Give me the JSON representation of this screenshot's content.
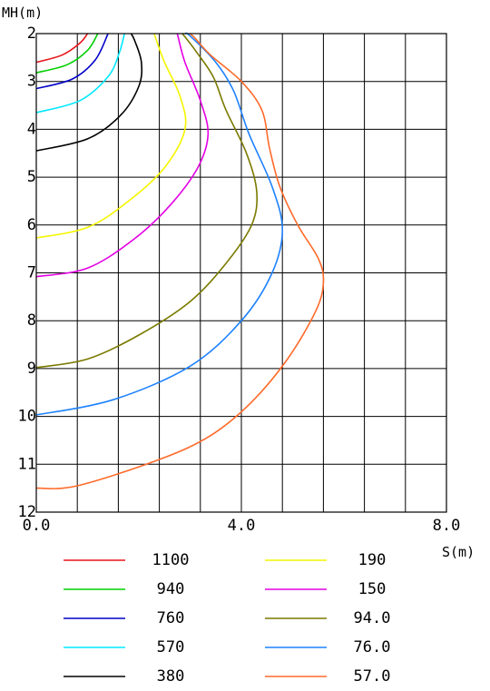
{
  "chart_data": {
    "type": "line",
    "xlabel": "S(m)",
    "ylabel": "MH(m)",
    "xlim": [
      0,
      8
    ],
    "ylim": [
      2,
      12
    ],
    "y_inverted": true,
    "x_tick_labels": [
      "0.0",
      "4.0",
      "8.0"
    ],
    "x_ticks": [
      0,
      4,
      8
    ],
    "y_ticks": [
      2,
      3,
      4,
      5,
      6,
      7,
      8,
      9,
      10,
      11,
      12
    ],
    "y_tick_labels": [
      "2",
      "3",
      "4",
      "5",
      "6",
      "7",
      "8",
      "9",
      "10",
      "11",
      "12"
    ],
    "grid": true,
    "grid_x_step": 0.8,
    "grid_y_step": 1,
    "legend_placement": "bottom",
    "series": [
      {
        "name": "1100",
        "color": "#e8151b",
        "points": [
          [
            0,
            2.6
          ],
          [
            0.5,
            2.45
          ],
          [
            0.85,
            2.2
          ],
          [
            1.0,
            2.0
          ]
        ]
      },
      {
        "name": "940",
        "color": "#00d000",
        "points": [
          [
            0,
            2.82
          ],
          [
            0.6,
            2.65
          ],
          [
            1.0,
            2.35
          ],
          [
            1.2,
            2.0
          ]
        ]
      },
      {
        "name": "760",
        "color": "#0000c8",
        "points": [
          [
            0,
            3.15
          ],
          [
            0.7,
            2.95
          ],
          [
            1.15,
            2.55
          ],
          [
            1.4,
            2.0
          ]
        ]
      },
      {
        "name": "570",
        "color": "#00e8ff",
        "points": [
          [
            0,
            3.65
          ],
          [
            0.85,
            3.4
          ],
          [
            1.4,
            2.9
          ],
          [
            1.62,
            2.4
          ],
          [
            1.72,
            2.0
          ]
        ]
      },
      {
        "name": "380",
        "color": "#000000",
        "points": [
          [
            0,
            4.45
          ],
          [
            1.0,
            4.2
          ],
          [
            1.65,
            3.7
          ],
          [
            2.0,
            3.1
          ],
          [
            2.05,
            2.6
          ],
          [
            1.92,
            2.15
          ],
          [
            1.85,
            2.0
          ]
        ]
      },
      {
        "name": "190",
        "color": "#f5f500",
        "points": [
          [
            0,
            6.27
          ],
          [
            1.0,
            6.05
          ],
          [
            1.8,
            5.5
          ],
          [
            2.5,
            4.8
          ],
          [
            2.9,
            4.0
          ],
          [
            2.8,
            3.3
          ],
          [
            2.5,
            2.6
          ],
          [
            2.3,
            2.0
          ]
        ]
      },
      {
        "name": "150",
        "color": "#e400e4",
        "points": [
          [
            0,
            7.08
          ],
          [
            1.0,
            6.9
          ],
          [
            1.9,
            6.3
          ],
          [
            2.6,
            5.6
          ],
          [
            3.15,
            4.8
          ],
          [
            3.35,
            4.1
          ],
          [
            3.2,
            3.4
          ],
          [
            2.9,
            2.6
          ],
          [
            2.75,
            2.0
          ]
        ]
      },
      {
        "name": "94.0",
        "color": "#7a7a00",
        "points": [
          [
            0,
            8.98
          ],
          [
            1.0,
            8.8
          ],
          [
            2.0,
            8.3
          ],
          [
            3.0,
            7.6
          ],
          [
            3.7,
            6.8
          ],
          [
            4.2,
            6.0
          ],
          [
            4.3,
            5.3
          ],
          [
            4.1,
            4.5
          ],
          [
            3.7,
            3.6
          ],
          [
            3.45,
            2.9
          ],
          [
            3.1,
            2.35
          ],
          [
            2.85,
            2.0
          ]
        ]
      },
      {
        "name": "76.0",
        "color": "#1e82ff",
        "points": [
          [
            0,
            9.97
          ],
          [
            1.5,
            9.65
          ],
          [
            3.0,
            8.95
          ],
          [
            4.0,
            8.0
          ],
          [
            4.6,
            7.0
          ],
          [
            4.8,
            6.1
          ],
          [
            4.6,
            5.2
          ],
          [
            4.15,
            4.1
          ],
          [
            3.85,
            3.2
          ],
          [
            3.5,
            2.6
          ],
          [
            3.0,
            2.05
          ],
          [
            2.9,
            2.0
          ]
        ]
      },
      {
        "name": "57.0",
        "color": "#ff6a2a",
        "points": [
          [
            0,
            11.5
          ],
          [
            0.8,
            11.45
          ],
          [
            2.4,
            10.9
          ],
          [
            3.4,
            10.4
          ],
          [
            4.2,
            9.7
          ],
          [
            4.9,
            8.8
          ],
          [
            5.45,
            7.8
          ],
          [
            5.6,
            7.2
          ],
          [
            5.5,
            6.7
          ],
          [
            5.1,
            6.0
          ],
          [
            4.75,
            5.2
          ],
          [
            4.55,
            4.4
          ],
          [
            4.4,
            3.6
          ],
          [
            4.0,
            3.0
          ],
          [
            3.4,
            2.45
          ],
          [
            3.1,
            2.1
          ],
          [
            3.0,
            2.0
          ]
        ]
      }
    ]
  }
}
